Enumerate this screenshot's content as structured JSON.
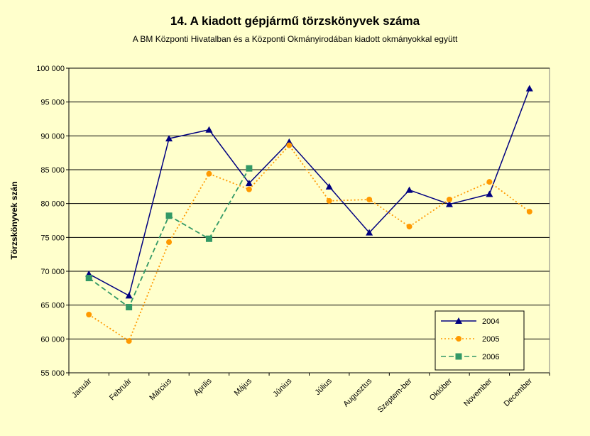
{
  "chart_data": {
    "type": "line",
    "title": "14. A  kiadott gépjármű  törzskönyvek száma",
    "subtitle": "A BM Központi Hivatalban és a Központi Okmányirodában kiadott okmányokkal együtt",
    "ylabel": "Törzskönyvek szán",
    "xlabel": "",
    "ylim": [
      55000,
      100000
    ],
    "yticks": [
      55000,
      60000,
      65000,
      70000,
      75000,
      80000,
      85000,
      90000,
      95000,
      100000
    ],
    "ytick_labels": [
      "55 000",
      "60 000",
      "65 000",
      "70 000",
      "75 000",
      "80 000",
      "85 000",
      "90 000",
      "95 000",
      "100 000"
    ],
    "categories": [
      "Január",
      "Február",
      "Március",
      "Április",
      "Május",
      "Június",
      "Július",
      "Augusztus",
      "Szeptem-ber",
      "Október",
      "November",
      "December"
    ],
    "grid": true,
    "legend_position": "bottom-right",
    "series": [
      {
        "name": "2004",
        "color": "#000080",
        "marker": "triangle",
        "dash": "solid",
        "values": [
          69600,
          66400,
          89600,
          90900,
          83000,
          89100,
          82500,
          75700,
          82000,
          79900,
          81400,
          97000
        ]
      },
      {
        "name": "2005",
        "color": "#ff9900",
        "marker": "circle",
        "dash": "dotted",
        "values": [
          63600,
          59700,
          74300,
          84400,
          82100,
          88600,
          80400,
          80600,
          76600,
          80600,
          83200,
          78800
        ]
      },
      {
        "name": "2006",
        "color": "#339966",
        "marker": "square",
        "dash": "dashed",
        "values": [
          69000,
          64700,
          78200,
          74800,
          85200,
          null,
          null,
          null,
          null,
          null,
          null,
          null
        ]
      }
    ]
  }
}
